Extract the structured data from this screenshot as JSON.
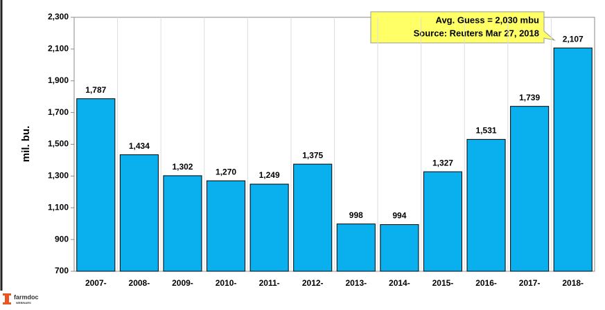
{
  "chart_data": {
    "type": "bar",
    "y_label": "mil. bu.",
    "annotation": [
      "Avg. Guess = 2,030 mbu",
      "Source: Reuters Mar 27, 2018"
    ],
    "categories": [
      "2007-",
      "2008-",
      "2009-",
      "2010-",
      "2011-",
      "2012-",
      "2013-",
      "2014-",
      "2015-",
      "2016-",
      "2017-",
      "2018-"
    ],
    "values": [
      1787,
      1434,
      1302,
      1270,
      1249,
      1375,
      998,
      994,
      1327,
      1531,
      1739,
      2107
    ],
    "value_labels": [
      "1,787",
      "1,434",
      "1,302",
      "1,270",
      "1,249",
      "1,375",
      "998",
      "994",
      "1,327",
      "1,531",
      "1,739",
      "2,107"
    ],
    "color": "#0ab0ee",
    "ylim": [
      700,
      2300
    ],
    "yticks": [
      700,
      900,
      {
        "value": 1100,
        "label": "1,100"
      },
      {
        "value": 1300,
        "label": "1,300"
      },
      {
        "value": 1500,
        "label": "1,500"
      },
      {
        "value": 1700,
        "label": "1,700"
      },
      {
        "value": 1900,
        "label": "1,900"
      },
      {
        "value": 2100,
        "label": "2,100"
      },
      {
        "value": 2300,
        "label": "2,300"
      }
    ],
    "grid": false
  },
  "logo": {
    "name": "farmdoc",
    "sub": "WEBINARS"
  }
}
